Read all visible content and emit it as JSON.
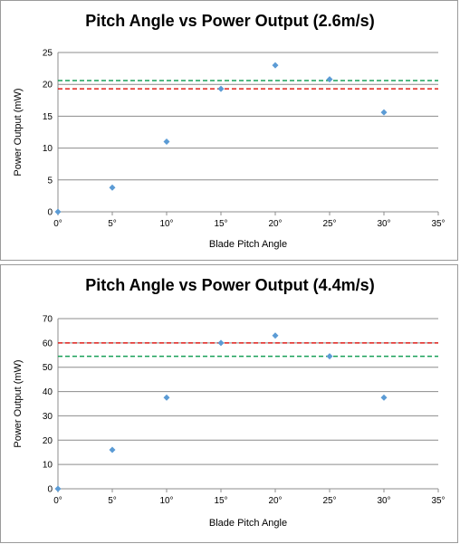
{
  "colors": {
    "marker": "#5b9bd5",
    "red_line": "#e0201b",
    "green_line": "#18a058",
    "grid": "#8c8c8c",
    "axis": "#8c8c8c"
  },
  "chart_data": [
    {
      "type": "scatter",
      "title": "Pitch Angle vs Power Output (2.6m/s)",
      "xlabel": "Blade Pitch Angle",
      "ylabel": "Power Output (mW)",
      "xlim": [
        0,
        35
      ],
      "ylim": [
        0,
        25
      ],
      "x_ticks": [
        "0°",
        "5°",
        "10°",
        "15°",
        "20°",
        "25°",
        "30°",
        "35°"
      ],
      "y_ticks": [
        "0",
        "5",
        "10",
        "15",
        "20",
        "25"
      ],
      "x_tick_values": [
        0,
        5,
        10,
        15,
        20,
        25,
        30,
        35
      ],
      "y_tick_values": [
        0,
        5,
        10,
        15,
        20,
        25
      ],
      "grid": "horizontal",
      "series": [
        {
          "x": [
            0,
            5,
            10,
            15,
            20,
            25,
            30
          ],
          "y": [
            0,
            3.8,
            11,
            19.3,
            23,
            20.8,
            15.6
          ]
        }
      ],
      "reference_lines": [
        {
          "y": 20.6,
          "color": "green",
          "style": "dashed"
        },
        {
          "y": 19.3,
          "color": "red",
          "style": "dashed"
        }
      ]
    },
    {
      "type": "scatter",
      "title": "Pitch Angle vs Power Output (4.4m/s)",
      "xlabel": "Blade Pitch Angle",
      "ylabel": "Power Output (mW)",
      "xlim": [
        0,
        35
      ],
      "ylim": [
        0,
        70
      ],
      "x_ticks": [
        "0°",
        "5°",
        "10°",
        "15°",
        "20°",
        "25°",
        "30°",
        "35°"
      ],
      "y_ticks": [
        "0",
        "10",
        "20",
        "30",
        "40",
        "50",
        "60",
        "70"
      ],
      "x_tick_values": [
        0,
        5,
        10,
        15,
        20,
        25,
        30,
        35
      ],
      "y_tick_values": [
        0,
        10,
        20,
        30,
        40,
        50,
        60,
        70
      ],
      "grid": "horizontal",
      "series": [
        {
          "x": [
            0,
            5,
            10,
            15,
            20,
            25,
            30
          ],
          "y": [
            0,
            16,
            37.5,
            60,
            63,
            54.5,
            37.5
          ]
        }
      ],
      "reference_lines": [
        {
          "y": 60,
          "color": "red",
          "style": "dashed"
        },
        {
          "y": 54.5,
          "color": "green",
          "style": "dashed"
        }
      ]
    }
  ]
}
